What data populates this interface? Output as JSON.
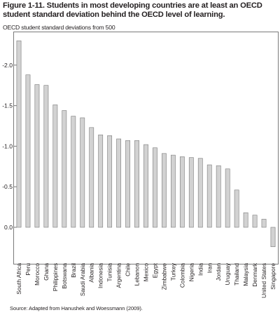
{
  "figure": {
    "title": "Figure 1-11.  Students in most developing countries are at least an OECD student standard deviation behind the OECD level of learning.",
    "y_axis_label": "OECD student standard deviations from 500",
    "source": "Source: Adapted from Hanushek and Woessmann (2009)."
  },
  "chart_data": {
    "type": "bar",
    "title": "",
    "xlabel": "",
    "ylabel": "OECD student standard deviations from 500",
    "ylim": [
      0.45,
      -2.45
    ],
    "y_axis_inverted": true,
    "yticks": [
      0.0,
      -0.5,
      -1.0,
      -1.5,
      -2.0
    ],
    "ytick_labels": [
      "0.0",
      "-0.5",
      "-1.0",
      "-1.5",
      "-2.0"
    ],
    "grid": false,
    "legend": "none",
    "bar_color": "#d2d2d2",
    "categories": [
      "South Africa",
      "Peru",
      "Morocco",
      "Ghana",
      "Philippines",
      "Botswana",
      "Brazil",
      "Saudi Arabia",
      "Albania",
      "Indonesia",
      "Tunisia",
      "Argentina",
      "Chile",
      "Lebanon",
      "Mexico",
      "Egypt",
      "Zimbabwe",
      "Turkey",
      "Colombia",
      "Nigeria",
      "India",
      "Iran",
      "Jordan",
      "Uruguay",
      "Thailand",
      "Malaysia",
      "Denmark",
      "United States",
      "Singapore"
    ],
    "values": [
      -2.3,
      -1.88,
      -1.76,
      -1.75,
      -1.51,
      -1.44,
      -1.37,
      -1.35,
      -1.23,
      -1.14,
      -1.13,
      -1.09,
      -1.07,
      -1.07,
      -1.02,
      -0.98,
      -0.91,
      -0.89,
      -0.87,
      -0.86,
      -0.85,
      -0.77,
      -0.76,
      -0.72,
      -0.46,
      -0.18,
      -0.15,
      -0.1,
      0.24
    ]
  }
}
